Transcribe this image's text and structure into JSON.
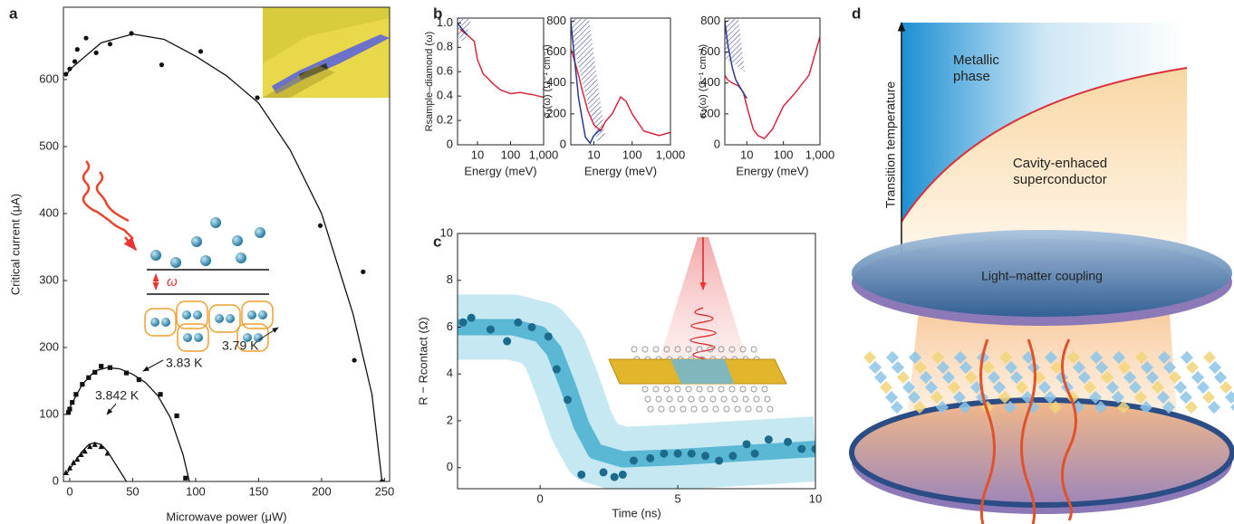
{
  "chart_data": [
    {
      "type": "scatter",
      "panel_label": "a",
      "xlabel": "Microwave power (μW)",
      "ylabel": "Critical current (μA)",
      "xlim": [
        -5,
        254
      ],
      "ylim": [
        0,
        708
      ],
      "xticks": [
        0,
        50,
        100,
        150,
        200,
        250
      ],
      "yticks": [
        0,
        100,
        200,
        300,
        400,
        500,
        600
      ],
      "annotations": [
        "ω"
      ],
      "series": [
        {
          "name": "3.79 K",
          "kind": "markers",
          "marker": "circle",
          "color": "#111111",
          "x": [
            -3,
            0,
            4,
            6,
            13,
            21,
            32,
            49,
            73,
            104,
            149,
            199,
            233,
            226,
            248
          ],
          "values": [
            608,
            616,
            627,
            645,
            662,
            640,
            653,
            669,
            622,
            642,
            573,
            382,
            313,
            181,
            0
          ]
        },
        {
          "kind": "line",
          "color": "#111111",
          "x": [
            -3,
            0,
            25,
            50,
            75,
            100,
            125,
            150,
            175,
            200,
            225,
            240,
            248
          ],
          "values": [
            605,
            615,
            655,
            668,
            660,
            635,
            605,
            565,
            495,
            400,
            250,
            130,
            0
          ]
        },
        {
          "name": "3.83 K",
          "kind": "markers",
          "marker": "square",
          "color": "#111111",
          "x": [
            -1,
            0,
            2,
            5,
            10,
            15,
            20,
            25,
            32,
            45,
            55,
            72,
            85,
            92
          ],
          "values": [
            103,
            108,
            118,
            130,
            145,
            155,
            163,
            172,
            170,
            162,
            152,
            130,
            98,
            5
          ]
        },
        {
          "kind": "line",
          "color": "#111111",
          "x": [
            -3,
            10,
            20,
            30,
            40,
            50,
            60,
            70,
            80,
            90,
            95
          ],
          "values": [
            100,
            145,
            165,
            170,
            168,
            160,
            148,
            128,
            95,
            40,
            0
          ]
        },
        {
          "name": "3.842 K",
          "kind": "markers",
          "marker": "triangle",
          "color": "#111111",
          "x": [
            -3,
            0,
            3,
            6,
            9,
            12,
            16,
            20,
            25,
            30
          ],
          "values": [
            13,
            20,
            28,
            33,
            40,
            45,
            52,
            55,
            52,
            42
          ]
        },
        {
          "kind": "line",
          "color": "#111111",
          "x": [
            -3,
            5,
            10,
            15,
            20,
            25,
            30,
            35,
            40,
            45
          ],
          "values": [
            10,
            32,
            45,
            55,
            58,
            55,
            45,
            30,
            15,
            0
          ]
        }
      ]
    },
    {
      "type": "line",
      "panel_label": "b",
      "xlabel": "Energy (meV)",
      "ylabel": "Rsample–diamond (ω)",
      "xscale": "log",
      "xlim": [
        2.5,
        1000
      ],
      "ylim": [
        0,
        1.04
      ],
      "xticks": [
        10,
        100,
        {
          "value": 1000,
          "label": "1,000"
        }
      ],
      "yticks": [
        0,
        0.2,
        0.4,
        0.6,
        0.8,
        {
          "value": 1,
          "label": "1.0"
        }
      ],
      "series": [
        {
          "kind": "line",
          "color": "#d7263d",
          "x": [
            3,
            4,
            5,
            6,
            8,
            10,
            15,
            20,
            30,
            50,
            100,
            200,
            300,
            500,
            1000
          ],
          "values": [
            0.95,
            0.92,
            0.9,
            0.88,
            0.85,
            0.7,
            0.58,
            0.55,
            0.5,
            0.45,
            0.42,
            0.43,
            0.42,
            0.41,
            0.39
          ]
        },
        {
          "kind": "line",
          "color": "#2b3990",
          "x": [
            2.5,
            3,
            4,
            5
          ],
          "values": [
            1.0,
            0.97,
            0.93,
            0.9
          ]
        }
      ]
    },
    {
      "type": "line",
      "xlabel": "Energy (meV)",
      "ylabel": "σ₁(ω) (Ω⁻¹ cm⁻¹)",
      "xscale": "log",
      "xlim": [
        2.5,
        1000
      ],
      "ylim": [
        0,
        820
      ],
      "xticks": [
        10,
        100,
        {
          "value": 1000,
          "label": "1,000"
        }
      ],
      "yticks": [
        0,
        200,
        400,
        600,
        800
      ],
      "series": [
        {
          "kind": "line",
          "color": "#d7263d",
          "x": [
            2.5,
            3,
            4,
            5,
            7,
            10,
            15,
            20,
            30,
            50,
            70,
            100,
            200,
            500,
            1000
          ],
          "values": [
            620,
            560,
            450,
            350,
            220,
            130,
            90,
            150,
            200,
            310,
            280,
            200,
            90,
            60,
            80
          ]
        },
        {
          "kind": "line",
          "color": "#2b3990",
          "x": [
            2.5,
            3,
            4,
            6,
            8,
            10,
            15
          ],
          "values": [
            800,
            600,
            300,
            50,
            10,
            60,
            100
          ]
        }
      ]
    },
    {
      "type": "line",
      "xlabel": "Energy (meV)",
      "ylabel": "σ₂(ω) (Ω⁻¹ cm⁻¹)",
      "xscale": "log",
      "xlim": [
        2.5,
        1000
      ],
      "ylim": [
        0,
        820
      ],
      "xticks": [
        10,
        100,
        {
          "value": 1000,
          "label": "1,000"
        }
      ],
      "yticks": [
        0,
        200,
        400,
        600,
        800
      ],
      "series": [
        {
          "kind": "line",
          "color": "#d7263d",
          "x": [
            2.5,
            3,
            4,
            6,
            8,
            10,
            15,
            20,
            30,
            50,
            100,
            200,
            500,
            1000
          ],
          "values": [
            450,
            420,
            400,
            380,
            340,
            250,
            100,
            60,
            40,
            100,
            250,
            330,
            450,
            700
          ]
        },
        {
          "kind": "line",
          "color": "#2b3990",
          "x": [
            2.5,
            3,
            4,
            5,
            7,
            10
          ],
          "values": [
            800,
            650,
            500,
            420,
            360,
            300
          ]
        }
      ]
    },
    {
      "type": "scatter",
      "panel_label": "c",
      "xlabel": "Time (ns)",
      "ylabel": "R − Rcontact (Ω)",
      "xlim": [
        -3,
        10
      ],
      "ylim": [
        -0.9,
        10
      ],
      "xticks": [
        0,
        5,
        10
      ],
      "yticks": [
        0,
        2,
        4,
        6,
        8,
        10
      ],
      "series": [
        {
          "kind": "line",
          "color": "#5bb8d4",
          "band_color": "#c6e8f2",
          "x": [
            -3,
            -1,
            0,
            0.5,
            1,
            1.5,
            2,
            3,
            5,
            10
          ],
          "values": [
            6,
            6,
            5.7,
            5,
            3.5,
            1.8,
            0.7,
            0.35,
            0.45,
            0.8
          ]
        },
        {
          "kind": "markers",
          "marker": "circle",
          "color": "#1c6a8c",
          "x": [
            -2.8,
            -2.5,
            -1.8,
            -1.2,
            -0.8,
            -0.3,
            0.3,
            0.6,
            1.0,
            1.5,
            2.3,
            2.7,
            3.0,
            3.4,
            4.0,
            4.5,
            5.0,
            5.5,
            6.0,
            6.5,
            7.0,
            7.5,
            7.8,
            8.3,
            9.0,
            9.5,
            10.0
          ],
          "values": [
            6.2,
            6.4,
            5.9,
            5.4,
            6.2,
            6.0,
            5.6,
            4.2,
            2.9,
            -0.3,
            -0.2,
            -0.4,
            -0.3,
            0.3,
            0.4,
            0.6,
            0.6,
            0.6,
            0.5,
            0.3,
            0.5,
            1.0,
            0.6,
            1.2,
            1.1,
            0.8,
            0.8
          ]
        }
      ]
    }
  ],
  "diagram": {
    "panel_label": "d",
    "y_axis_label": "Transition temperature",
    "x_axis_label": "Light–matter coupling",
    "regions": [
      "Metallic phase",
      "Cavity-enhaced superconductor"
    ]
  }
}
